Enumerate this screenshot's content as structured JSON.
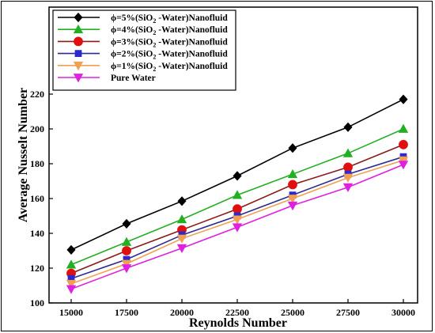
{
  "chart_data": {
    "type": "line",
    "xlabel": "Reynolds Number",
    "ylabel": "Average Nusselt Number",
    "x": [
      15000,
      17500,
      20000,
      22500,
      25000,
      27500,
      30000
    ],
    "x_tick_labels": [
      "15000",
      "17500",
      "20000",
      "22500",
      "25000",
      "27500",
      "30000"
    ],
    "y_ticks": [
      100,
      120,
      140,
      160,
      180,
      200,
      220
    ],
    "ylim": [
      100,
      230
    ],
    "grid": false,
    "legend_placement": "top-left",
    "series": [
      {
        "name": "ϕ=5%(SiO2 -Water)Nanofluid",
        "legend_parts": [
          "ϕ=5%(SiO",
          "2",
          " -Water)Nanofluid"
        ],
        "marker": "diamond",
        "color": "#000000",
        "values": [
          130.5,
          145.5,
          158.5,
          173.0,
          189.0,
          201.0,
          217.0
        ]
      },
      {
        "name": "ϕ=4%(SiO2 -Water)Nanofluid",
        "legend_parts": [
          "ϕ=4%(SiO",
          "2",
          " -Water)Nanofluid"
        ],
        "marker": "triangle-up",
        "color": "#22b022",
        "values": [
          122.0,
          135.0,
          148.0,
          162.0,
          174.0,
          186.0,
          200.0
        ]
      },
      {
        "name": "ϕ=3%(SiO2 -Water)Nanofluid",
        "legend_parts": [
          "ϕ=3%(SiO",
          "2",
          " -Water)Nanofluid"
        ],
        "marker": "circle",
        "color": "#e01010",
        "line_color": "#8b1a1a",
        "values": [
          117.0,
          130.0,
          142.0,
          154.0,
          168.0,
          178.0,
          191.0
        ]
      },
      {
        "name": "ϕ=2%(SiO2 -Water)Nanofluid",
        "legend_parts": [
          "ϕ=2%(SiO",
          "2",
          " -Water)Nanofluid"
        ],
        "marker": "square",
        "color": "#2a2ad0",
        "line_color": "#2a2a90",
        "values": [
          114.0,
          125.0,
          139.0,
          150.0,
          162.0,
          174.0,
          184.0
        ]
      },
      {
        "name": "ϕ=1%(SiO2 -Water)Nanofluid",
        "legend_parts": [
          "ϕ=1%(SiO",
          "2",
          " -Water)Nanofluid"
        ],
        "marker": "triangle-down",
        "color": "#f0a050",
        "values": [
          111.0,
          122.5,
          137.0,
          148.0,
          160.0,
          172.0,
          182.0
        ]
      },
      {
        "name": "Pure Water",
        "legend_parts": [
          "Pure Water",
          "",
          ""
        ],
        "marker": "triangle-down",
        "color": "#e020e0",
        "values": [
          108.0,
          120.0,
          131.5,
          143.5,
          156.0,
          166.5,
          179.5
        ]
      }
    ]
  }
}
